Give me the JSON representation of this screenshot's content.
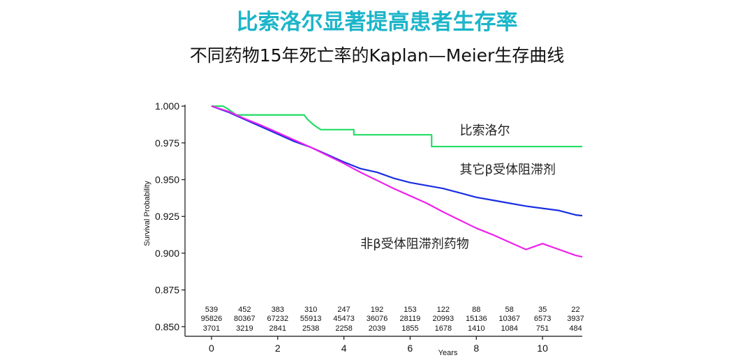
{
  "header": {
    "title": "比索洛尔显著提高患者生存率",
    "subtitle": "不同药物15年死亡率的Kaplan—Meier生存曲线"
  },
  "chart_data": {
    "type": "line",
    "xlabel": "Years",
    "ylabel": "Survival Probability",
    "xlim": [
      -0.8,
      11.2
    ],
    "ylim": [
      0.8435,
      1.001
    ],
    "x_ticks": [
      {
        "value": 0,
        "label": "0"
      },
      {
        "value": 2,
        "label": "2"
      },
      {
        "value": 4,
        "label": "4"
      },
      {
        "value": 6,
        "label": "6"
      },
      {
        "value": 8,
        "label": "8"
      },
      {
        "value": 10,
        "label": "10"
      }
    ],
    "y_ticks": [
      {
        "value": 1.0,
        "label": "1.000"
      },
      {
        "value": 0.975,
        "label": "0.975"
      },
      {
        "value": 0.95,
        "label": "0.950"
      },
      {
        "value": 0.925,
        "label": "0.925"
      },
      {
        "value": 0.9,
        "label": "0.900"
      },
      {
        "value": 0.875,
        "label": "0.875"
      },
      {
        "value": 0.85,
        "label": "0.850"
      }
    ],
    "series": [
      {
        "name": "比索洛尔",
        "color": "#22dd66",
        "step": true,
        "label_pos": [
          7.5,
          0.9805
        ],
        "points": [
          [
            0,
            1.0
          ],
          [
            0.35,
            1.0
          ],
          [
            0.5,
            0.998
          ],
          [
            0.75,
            0.994
          ],
          [
            2.8,
            0.994
          ],
          [
            2.9,
            0.991
          ],
          [
            3.1,
            0.987
          ],
          [
            3.3,
            0.984
          ],
          [
            4.3,
            0.984
          ],
          [
            4.3,
            0.9805
          ],
          [
            6.65,
            0.9805
          ],
          [
            6.65,
            0.9725
          ],
          [
            11.2,
            0.9725
          ]
        ]
      },
      {
        "name": "其它β受体阻滞剂",
        "color": "#1a2fe0",
        "step": false,
        "label_pos": [
          7.5,
          0.954
        ],
        "points": [
          [
            0,
            1.0
          ],
          [
            0.5,
            0.996
          ],
          [
            1,
            0.991
          ],
          [
            1.5,
            0.986
          ],
          [
            2,
            0.981
          ],
          [
            2.5,
            0.976
          ],
          [
            3,
            0.972
          ],
          [
            3.5,
            0.967
          ],
          [
            4,
            0.962
          ],
          [
            4.5,
            0.9575
          ],
          [
            5,
            0.955
          ],
          [
            5.5,
            0.951
          ],
          [
            6,
            0.948
          ],
          [
            6.5,
            0.946
          ],
          [
            7,
            0.944
          ],
          [
            7.5,
            0.941
          ],
          [
            8,
            0.938
          ],
          [
            8.5,
            0.936
          ],
          [
            9,
            0.934
          ],
          [
            9.5,
            0.932
          ],
          [
            10,
            0.9305
          ],
          [
            10.5,
            0.929
          ],
          [
            11,
            0.926
          ],
          [
            11.2,
            0.9255
          ]
        ]
      },
      {
        "name": "非β受体阻滞剂药物",
        "color": "#ee22ee",
        "step": false,
        "label_pos": [
          4.5,
          0.9035
        ],
        "points": [
          [
            0,
            1.0
          ],
          [
            0.5,
            0.9965
          ],
          [
            1,
            0.9915
          ],
          [
            1.5,
            0.987
          ],
          [
            2,
            0.982
          ],
          [
            2.5,
            0.977
          ],
          [
            3,
            0.972
          ],
          [
            3.5,
            0.9665
          ],
          [
            4,
            0.961
          ],
          [
            4.5,
            0.955
          ],
          [
            5,
            0.9495
          ],
          [
            5.5,
            0.944
          ],
          [
            6,
            0.939
          ],
          [
            6.5,
            0.934
          ],
          [
            7,
            0.928
          ],
          [
            7.5,
            0.9225
          ],
          [
            8,
            0.917
          ],
          [
            8.5,
            0.9125
          ],
          [
            9,
            0.9075
          ],
          [
            9.5,
            0.9025
          ],
          [
            10,
            0.9065
          ],
          [
            10.5,
            0.9025
          ],
          [
            11,
            0.8985
          ],
          [
            11.2,
            0.8975
          ]
        ]
      }
    ],
    "risk_table": {
      "x": [
        0,
        1,
        2,
        3,
        4,
        5,
        6,
        7,
        8,
        9,
        10,
        11
      ],
      "rows": [
        [
          "539",
          "452",
          "383",
          "310",
          "247",
          "192",
          "153",
          "122",
          "88",
          "58",
          "35",
          "22"
        ],
        [
          "95826",
          "80367",
          "67232",
          "55913",
          "45473",
          "36076",
          "28119",
          "20993",
          "15136",
          "10367",
          "6573",
          "3937"
        ],
        [
          "3701",
          "3219",
          "2841",
          "2538",
          "2258",
          "2039",
          "1855",
          "1678",
          "1410",
          "1084",
          "751",
          "484"
        ]
      ]
    }
  }
}
